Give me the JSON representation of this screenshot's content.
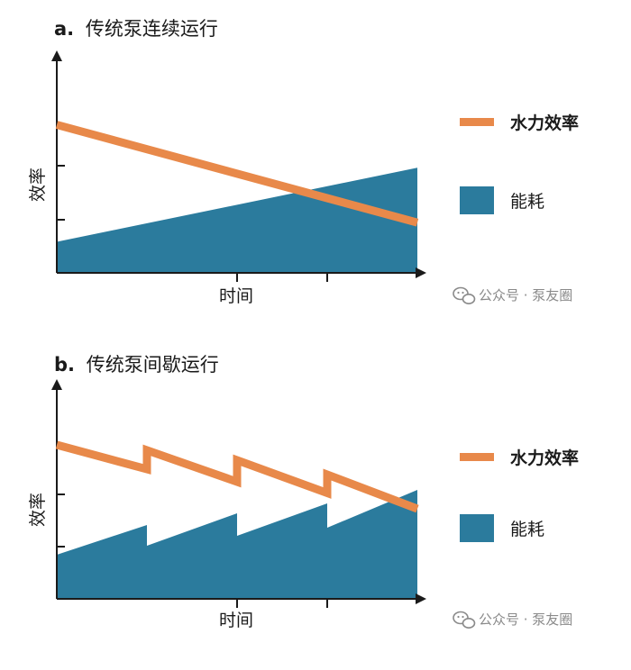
{
  "colors": {
    "efficiency": "#e8894a",
    "energy": "#2b7b9d",
    "axis": "#1a1a1a",
    "watermark": "#8a8a8a"
  },
  "watermark_text": "公众号 · 泵友圈",
  "chart_data": [
    {
      "type": "area",
      "panel_prefix": "a.",
      "title": "传统泵连续运行",
      "xlabel": "时间",
      "ylabel": "效率",
      "x_range": [
        0,
        4
      ],
      "y_range": [
        0,
        4
      ],
      "grid": false,
      "legend_position": "right",
      "series": [
        {
          "name": "水力效率",
          "kind": "line",
          "points": [
            [
              0,
              3.24
            ],
            [
              4,
              1.1
            ]
          ]
        },
        {
          "name": "能耗",
          "kind": "area",
          "points": [
            [
              0,
              0.68
            ],
            [
              4,
              2.3
            ]
          ]
        }
      ]
    },
    {
      "type": "area",
      "panel_prefix": "b.",
      "title": "传统泵间歇运行",
      "xlabel": "时间",
      "ylabel": "效率",
      "x_range": [
        0,
        4
      ],
      "y_range": [
        0,
        4
      ],
      "grid": false,
      "legend_position": "right",
      "series": [
        {
          "name": "水力效率",
          "kind": "line",
          "points": [
            [
              0,
              3.42
            ],
            [
              1,
              2.88
            ],
            [
              1,
              3.3
            ],
            [
              2,
              2.6
            ],
            [
              2,
              3.08
            ],
            [
              3,
              2.35
            ],
            [
              3,
              2.76
            ],
            [
              4,
              2.0
            ]
          ]
        },
        {
          "name": "能耗",
          "kind": "area",
          "points": [
            [
              0,
              0.98
            ],
            [
              1,
              1.64
            ],
            [
              1,
              1.18
            ],
            [
              2,
              1.9
            ],
            [
              2,
              1.4
            ],
            [
              3,
              2.12
            ],
            [
              3,
              1.58
            ],
            [
              4,
              2.42
            ]
          ]
        }
      ]
    }
  ]
}
